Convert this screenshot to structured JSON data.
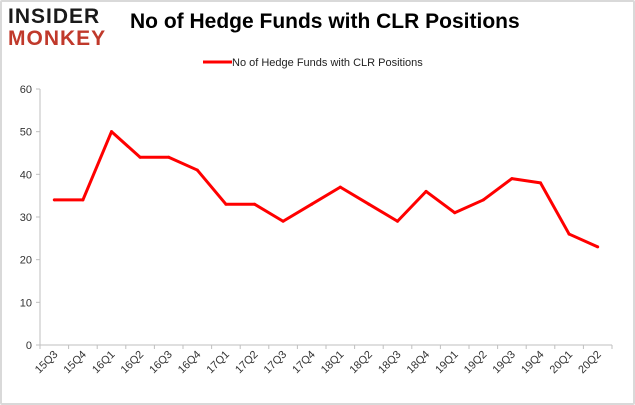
{
  "logo": {
    "line1": "INSIDER",
    "line2": "MONKEY"
  },
  "chart_data": {
    "type": "line",
    "title": "No of Hedge Funds with CLR Positions",
    "xlabel": "",
    "ylabel": "",
    "categories": [
      "15Q3",
      "15Q4",
      "16Q1",
      "16Q2",
      "16Q3",
      "16Q4",
      "17Q1",
      "17Q2",
      "17Q3",
      "17Q4",
      "18Q1",
      "18Q2",
      "18Q3",
      "18Q4",
      "19Q1",
      "19Q2",
      "19Q3",
      "19Q4",
      "20Q1",
      "20Q2"
    ],
    "series": [
      {
        "name": "No of Hedge Funds with CLR Positions",
        "values": [
          34,
          34,
          50,
          44,
          44,
          41,
          33,
          33,
          29,
          33,
          37,
          33,
          29,
          36,
          31,
          34,
          39,
          38,
          26,
          23
        ],
        "color": "#ff0000"
      }
    ],
    "ylim": [
      0,
      60
    ],
    "yticks": [
      0,
      10,
      20,
      30,
      40,
      50,
      60
    ],
    "grid": false,
    "legend": "top-center"
  },
  "colors": {
    "axis": "#bfbfbf",
    "logo_dark": "#1a1a1a",
    "logo_red": "#c0392b"
  }
}
